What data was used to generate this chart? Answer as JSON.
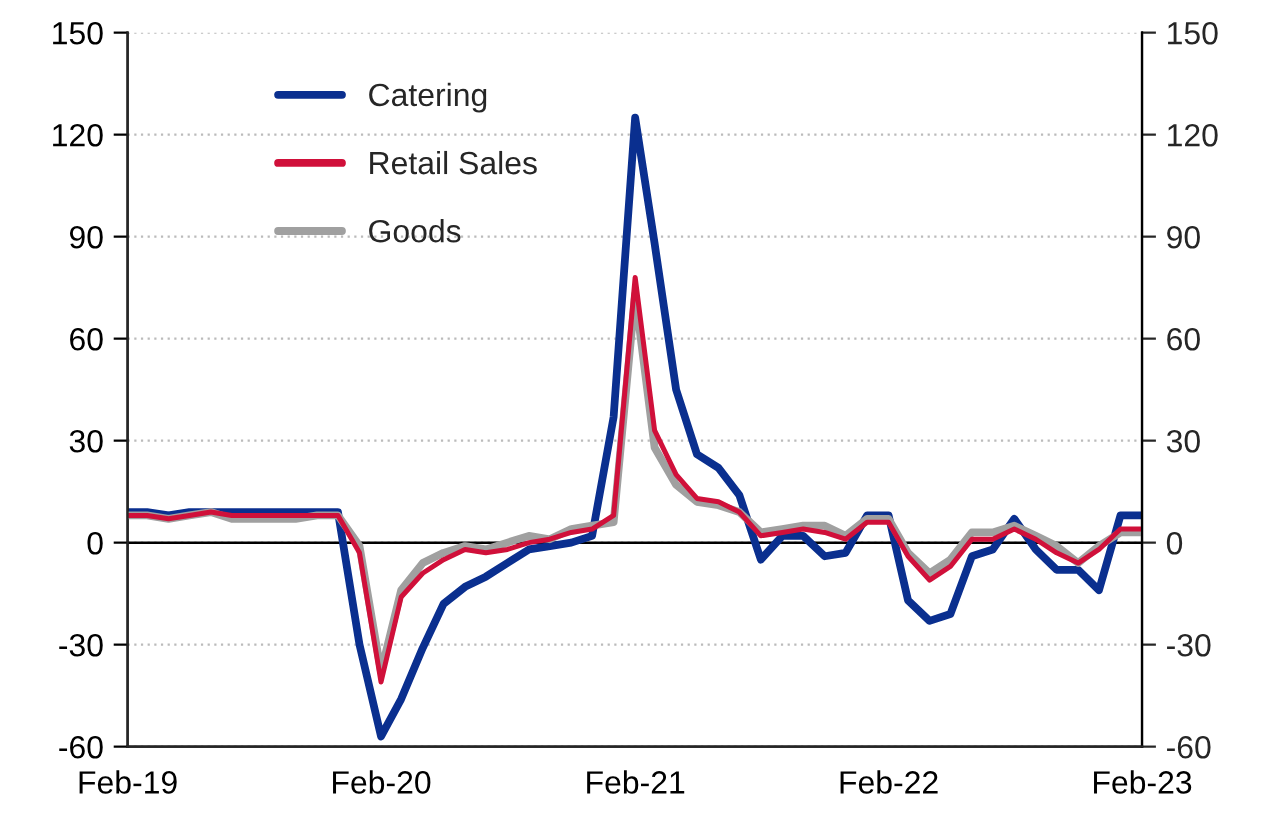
{
  "chart_data": {
    "type": "line",
    "x": [
      "2019-02",
      "2019-03",
      "2019-04",
      "2019-05",
      "2019-06",
      "2019-07",
      "2019-08",
      "2019-09",
      "2019-10",
      "2019-11",
      "2019-12",
      "2020-01",
      "2020-02",
      "2020-03",
      "2020-04",
      "2020-05",
      "2020-06",
      "2020-07",
      "2020-08",
      "2020-09",
      "2020-10",
      "2020-11",
      "2020-12",
      "2021-01",
      "2021-02",
      "2021-03",
      "2021-04",
      "2021-05",
      "2021-06",
      "2021-07",
      "2021-08",
      "2021-09",
      "2021-10",
      "2021-11",
      "2021-12",
      "2022-01",
      "2022-02",
      "2022-03",
      "2022-04",
      "2022-05",
      "2022-06",
      "2022-07",
      "2022-08",
      "2022-09",
      "2022-10",
      "2022-11",
      "2022-12",
      "2023-01",
      "2023-02"
    ],
    "series": [
      {
        "name": "Catering",
        "color": "#0a2f8f",
        "values": [
          9,
          9,
          8,
          9,
          9,
          9,
          9,
          9,
          9,
          9,
          9,
          -30,
          -57,
          -46,
          -31,
          -18,
          -13,
          -10,
          -6,
          -2,
          -1,
          0,
          2,
          37,
          125,
          88,
          45,
          26,
          22,
          14,
          -5,
          2,
          2,
          -4,
          -3,
          8,
          8,
          -17,
          -23,
          -21,
          -4,
          -2,
          7,
          -2,
          -8,
          -8,
          -14,
          8,
          8
        ]
      },
      {
        "name": "Retail Sales",
        "color": "#d0103a",
        "values": [
          8,
          8,
          7,
          8,
          9,
          8,
          8,
          8,
          8,
          8,
          8,
          -3,
          -41,
          -16,
          -9,
          -5,
          -2,
          -3,
          -2,
          0,
          1,
          3,
          4,
          8,
          78,
          33,
          20,
          13,
          12,
          9,
          2,
          3,
          4,
          3,
          1,
          6,
          6,
          -4,
          -11,
          -7,
          1,
          1,
          4,
          1,
          -3,
          -6,
          -2,
          4,
          4
        ]
      },
      {
        "name": "Goods",
        "color": "#a0a0a0",
        "values": [
          8,
          8,
          7,
          8,
          9,
          7,
          7,
          7,
          7,
          8,
          8,
          -1,
          -38,
          -14,
          -6,
          -3,
          -1,
          -2,
          0,
          2,
          1,
          4,
          5,
          6,
          73,
          28,
          17,
          12,
          11,
          9,
          3,
          4,
          5,
          5,
          2,
          7,
          7,
          -3,
          -9,
          -5,
          3,
          3,
          5,
          2,
          -1,
          -6,
          -1,
          3,
          3
        ]
      }
    ],
    "xlim": [
      "2019-02",
      "2023-02"
    ],
    "xticks": [
      {
        "value": "2019-02",
        "label": "Feb-19"
      },
      {
        "value": "2020-02",
        "label": "Feb-20"
      },
      {
        "value": "2021-02",
        "label": "Feb-21"
      },
      {
        "value": "2022-02",
        "label": "Feb-22"
      },
      {
        "value": "2023-02",
        "label": "Feb-23"
      }
    ],
    "ylim": [
      -60,
      150
    ],
    "yticks": [
      -60,
      -30,
      0,
      30,
      60,
      90,
      120,
      150
    ],
    "y2lim": [
      -60,
      150
    ],
    "y2ticks": [
      -60,
      -30,
      0,
      30,
      60,
      90,
      120,
      150
    ],
    "ref_lines": [
      {
        "axis": "y",
        "value": 0,
        "color": "#000000"
      }
    ],
    "grid": "y",
    "legend": "top left",
    "line_style": "solid",
    "marker": "none"
  }
}
